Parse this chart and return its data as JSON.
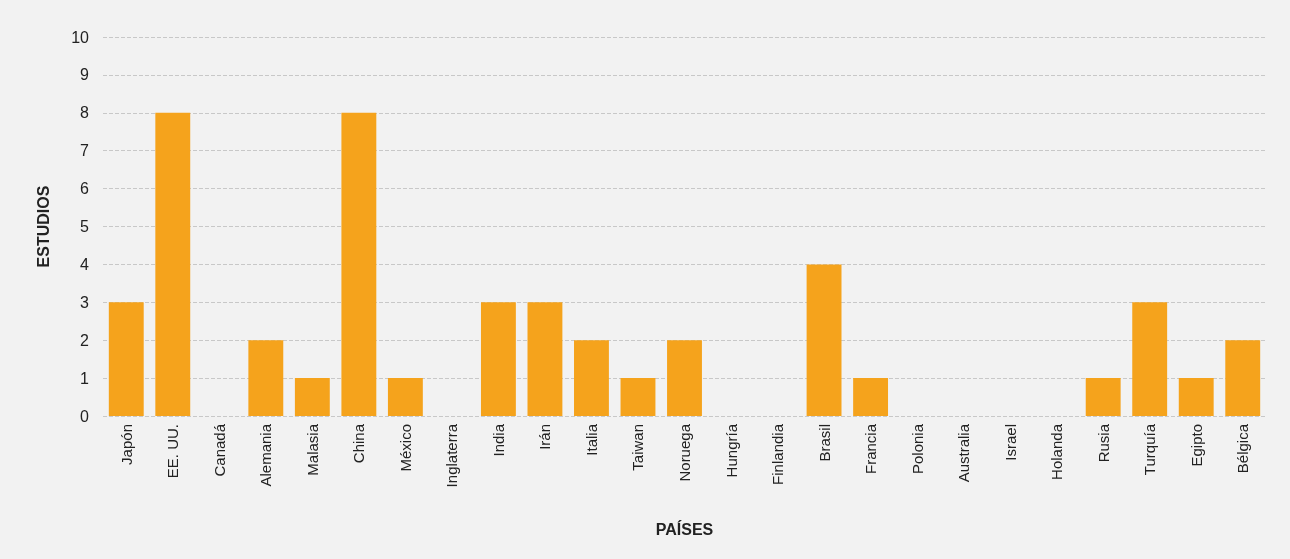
{
  "chart_data": {
    "type": "bar",
    "xlabel": "PAÍSES",
    "ylabel": "ESTUDIOS",
    "categories": [
      "Japón",
      "EE. UU.",
      "Canadá",
      "Alemania",
      "Malasia",
      "China",
      "México",
      "Inglaterra",
      "India",
      "Irán",
      "Italia",
      "Taiwan",
      "Noruega",
      "Hungría",
      "Finlandia",
      "Brasil",
      "Francia",
      "Polonia",
      "Australia",
      "Israel",
      "Holanda",
      "Rusia",
      "Turquía",
      "Egipto",
      "Bélgica"
    ],
    "values": [
      3,
      8,
      0,
      2,
      1,
      8,
      1,
      0,
      3,
      3,
      2,
      1,
      2,
      0,
      0,
      4,
      1,
      0,
      0,
      0,
      0,
      1,
      3,
      1,
      2
    ],
    "color": "#f5a31c",
    "ylim": [
      0,
      10
    ],
    "yticks": [
      0,
      1,
      2,
      3,
      4,
      5,
      6,
      7,
      8,
      9,
      10
    ],
    "grid": "y"
  }
}
